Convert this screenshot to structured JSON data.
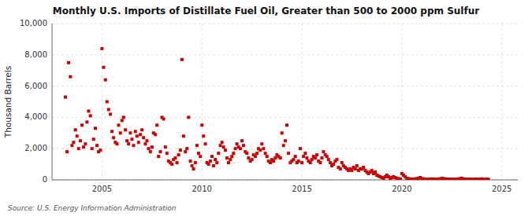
{
  "chart_data": {
    "type": "scatter",
    "title": "Monthly U.S. Imports of Distillate Fuel Oil, Greater than 500 to 2000 ppm Sulfur",
    "ylabel": "Thousand Barrels",
    "source": "Source: U.S. Energy Information Administration",
    "color": "#cc0000",
    "marker": "square",
    "grid": true,
    "xlim": [
      2002.5,
      2025.8
    ],
    "xticks": [
      2005,
      2010,
      2015,
      2020,
      2025
    ],
    "ylim": [
      0,
      10000
    ],
    "yticks": [
      0,
      {
        "value": 2000,
        "label": "2,000"
      },
      {
        "value": 4000,
        "label": "4,000"
      },
      {
        "value": 6000,
        "label": "6,000"
      },
      {
        "value": 8000,
        "label": "8,000"
      },
      {
        "value": 10000,
        "label": "10,000"
      }
    ],
    "x": [
      2003.17,
      2003.25,
      2003.33,
      2003.42,
      2003.5,
      2003.58,
      2003.67,
      2003.75,
      2003.83,
      2003.92,
      2004.0,
      2004.08,
      2004.17,
      2004.25,
      2004.33,
      2004.42,
      2004.5,
      2004.58,
      2004.67,
      2004.75,
      2004.83,
      2004.92,
      2005.0,
      2005.08,
      2005.17,
      2005.25,
      2005.33,
      2005.42,
      2005.5,
      2005.58,
      2005.67,
      2005.75,
      2005.83,
      2005.92,
      2006.0,
      2006.08,
      2006.17,
      2006.25,
      2006.33,
      2006.42,
      2006.5,
      2006.58,
      2006.67,
      2006.75,
      2006.83,
      2006.92,
      2007.0,
      2007.08,
      2007.17,
      2007.25,
      2007.33,
      2007.42,
      2007.5,
      2007.58,
      2007.67,
      2007.75,
      2007.83,
      2007.92,
      2008.0,
      2008.08,
      2008.17,
      2008.25,
      2008.33,
      2008.42,
      2008.5,
      2008.58,
      2008.67,
      2008.75,
      2008.83,
      2008.92,
      2009.0,
      2009.08,
      2009.17,
      2009.25,
      2009.33,
      2009.42,
      2009.5,
      2009.58,
      2009.67,
      2009.75,
      2009.83,
      2009.92,
      2010.0,
      2010.08,
      2010.17,
      2010.25,
      2010.33,
      2010.42,
      2010.5,
      2010.58,
      2010.67,
      2010.75,
      2010.83,
      2010.92,
      2011.0,
      2011.08,
      2011.17,
      2011.25,
      2011.33,
      2011.42,
      2011.5,
      2011.58,
      2011.67,
      2011.75,
      2011.83,
      2011.92,
      2012.0,
      2012.08,
      2012.17,
      2012.25,
      2012.33,
      2012.42,
      2012.5,
      2012.58,
      2012.67,
      2012.75,
      2012.83,
      2012.92,
      2013.0,
      2013.08,
      2013.17,
      2013.25,
      2013.33,
      2013.42,
      2013.5,
      2013.58,
      2013.67,
      2013.75,
      2013.83,
      2013.92,
      2014.0,
      2014.08,
      2014.17,
      2014.25,
      2014.33,
      2014.42,
      2014.5,
      2014.58,
      2014.67,
      2014.75,
      2014.83,
      2014.92,
      2015.0,
      2015.08,
      2015.17,
      2015.25,
      2015.33,
      2015.42,
      2015.5,
      2015.58,
      2015.67,
      2015.75,
      2015.83,
      2015.92,
      2016.0,
      2016.08,
      2016.17,
      2016.25,
      2016.33,
      2016.42,
      2016.5,
      2016.58,
      2016.67,
      2016.75,
      2016.83,
      2016.92,
      2017.0,
      2017.08,
      2017.17,
      2017.25,
      2017.33,
      2017.42,
      2017.5,
      2017.58,
      2017.67,
      2017.75,
      2017.83,
      2017.92,
      2018.0,
      2018.08,
      2018.17,
      2018.25,
      2018.33,
      2018.42,
      2018.5,
      2018.58,
      2018.67,
      2018.75,
      2018.83,
      2018.92,
      2019.0,
      2019.08,
      2019.17,
      2019.25,
      2019.33,
      2019.42,
      2019.5,
      2019.58,
      2019.67,
      2019.75,
      2019.83,
      2019.92,
      2020.0,
      2020.08,
      2020.17,
      2020.25,
      2020.33,
      2020.42,
      2020.5,
      2020.58,
      2020.67,
      2020.75,
      2020.83,
      2020.92,
      2021.0,
      2021.08,
      2021.17,
      2021.25,
      2021.33,
      2021.42,
      2021.5,
      2021.58,
      2021.67,
      2021.75,
      2021.83,
      2021.92,
      2022.0,
      2022.08,
      2022.17,
      2022.25,
      2022.33,
      2022.42,
      2022.5,
      2022.58,
      2022.67,
      2022.75,
      2022.83,
      2022.92,
      2023.0,
      2023.08,
      2023.17,
      2023.25,
      2023.33,
      2023.42,
      2023.5,
      2023.58,
      2023.67,
      2023.75,
      2023.83,
      2023.92,
      2024.0,
      2024.08,
      2024.17,
      2024.25,
      2024.33
    ],
    "values": [
      5300,
      1800,
      7500,
      6600,
      2200,
      2400,
      3200,
      2800,
      2000,
      2500,
      3500,
      2100,
      2300,
      3700,
      4400,
      4100,
      2000,
      2600,
      3300,
      2200,
      1800,
      1900,
      8400,
      7200,
      6400,
      5000,
      4500,
      4200,
      3100,
      2700,
      2400,
      2300,
      3500,
      3000,
      3800,
      4000,
      3200,
      2500,
      2300,
      3000,
      2600,
      2200,
      3100,
      2800,
      2400,
      2900,
      3200,
      2700,
      2300,
      2500,
      2000,
      1800,
      2100,
      3000,
      2900,
      3500,
      1500,
      1800,
      4000,
      3900,
      2100,
      1700,
      1200,
      1100,
      1000,
      1300,
      1400,
      1100,
      1600,
      1900,
      7700,
      2800,
      1800,
      2000,
      4000,
      1200,
      900,
      700,
      1100,
      2200,
      1700,
      1500,
      3500,
      2800,
      2300,
      1100,
      1000,
      1200,
      1500,
      900,
      1300,
      1100,
      1700,
      2200,
      2400,
      2100,
      1900,
      1400,
      1100,
      1300,
      1500,
      1700,
      2000,
      2300,
      2100,
      2000,
      2500,
      2200,
      1800,
      1700,
      1400,
      1200,
      1300,
      1600,
      1500,
      1700,
      2000,
      1900,
      2300,
      2000,
      1700,
      1500,
      1200,
      1100,
      1300,
      1200,
      1400,
      1600,
      1500,
      1400,
      3000,
      2200,
      2500,
      3500,
      1700,
      1100,
      1200,
      1300,
      1500,
      1100,
      1200,
      2000,
      1100,
      1500,
      1700,
      1400,
      1200,
      1100,
      1300,
      1500,
      1400,
      1600,
      1200,
      1100,
      1400,
      1800,
      1600,
      1500,
      1300,
      1100,
      900,
      1000,
      1200,
      1300,
      800,
      700,
      1100,
      900,
      800,
      700,
      600,
      700,
      600,
      800,
      700,
      900,
      600,
      700,
      700,
      800,
      600,
      500,
      400,
      500,
      600,
      400,
      500,
      300,
      250,
      200,
      150,
      100,
      200,
      300,
      200,
      100,
      150,
      200,
      150,
      100,
      80,
      60,
      400,
      300,
      200,
      100,
      80,
      60,
      50,
      40,
      60,
      80,
      100,
      150,
      80,
      60,
      50,
      40,
      30,
      50,
      60,
      50,
      40,
      30,
      50,
      60,
      100,
      80,
      60,
      50,
      40,
      50,
      30,
      40,
      30,
      50,
      60,
      80,
      100,
      60,
      50,
      40,
      30,
      50,
      40,
      30,
      50,
      40,
      30,
      50,
      60,
      40,
      30,
      50,
      40
    ]
  }
}
